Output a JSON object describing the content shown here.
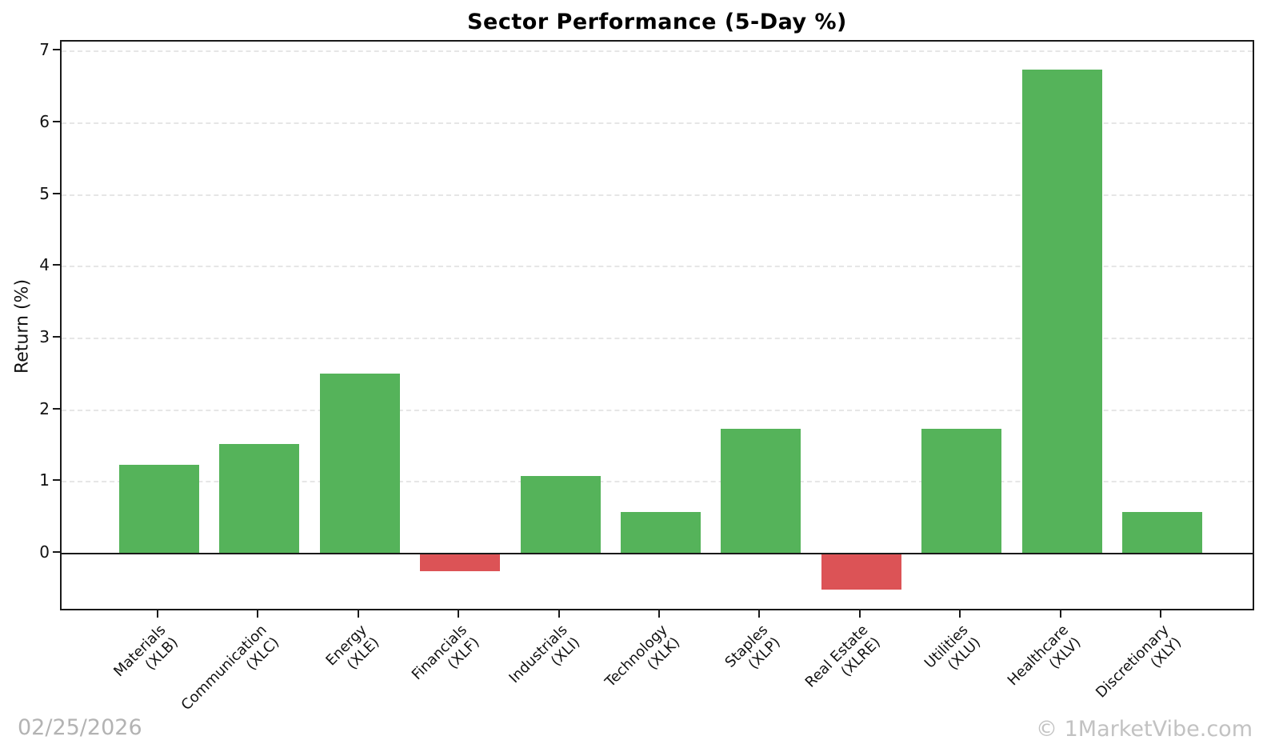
{
  "chart_data": {
    "type": "bar",
    "title": "Sector Performance (5-Day %)",
    "xlabel": "",
    "ylabel": "Return (%)",
    "yticks": [
      0,
      1,
      2,
      3,
      4,
      5,
      6,
      7
    ],
    "ylim": [
      -0.81,
      7.13
    ],
    "grid": "horizontal-dashed",
    "legend": "none",
    "categories": [
      {
        "name": "Materials",
        "ticker": "(XLB)"
      },
      {
        "name": "Communication",
        "ticker": "(XLC)"
      },
      {
        "name": "Energy",
        "ticker": "(XLE)"
      },
      {
        "name": "Financials",
        "ticker": "(XLF)"
      },
      {
        "name": "Industrials",
        "ticker": "(XLI)"
      },
      {
        "name": "Technology",
        "ticker": "(XLK)"
      },
      {
        "name": "Staples",
        "ticker": "(XLP)"
      },
      {
        "name": "Real Estate",
        "ticker": "(XLRE)"
      },
      {
        "name": "Utilities",
        "ticker": "(XLU)"
      },
      {
        "name": "Healthcare",
        "ticker": "(XLV)"
      },
      {
        "name": "Discretionary",
        "ticker": "(XLY)"
      }
    ],
    "values": [
      1.24,
      1.53,
      2.51,
      -0.25,
      1.08,
      0.58,
      1.74,
      -0.5,
      1.74,
      6.74,
      0.58
    ],
    "positive_color": "#55b35a",
    "negative_color": "#dc5356",
    "axis_color": "#1a1a1a",
    "gridline_color": "#e6e6e6"
  },
  "footer": {
    "date": "02/25/2026",
    "watermark": "© 1MarketVibe.com"
  }
}
